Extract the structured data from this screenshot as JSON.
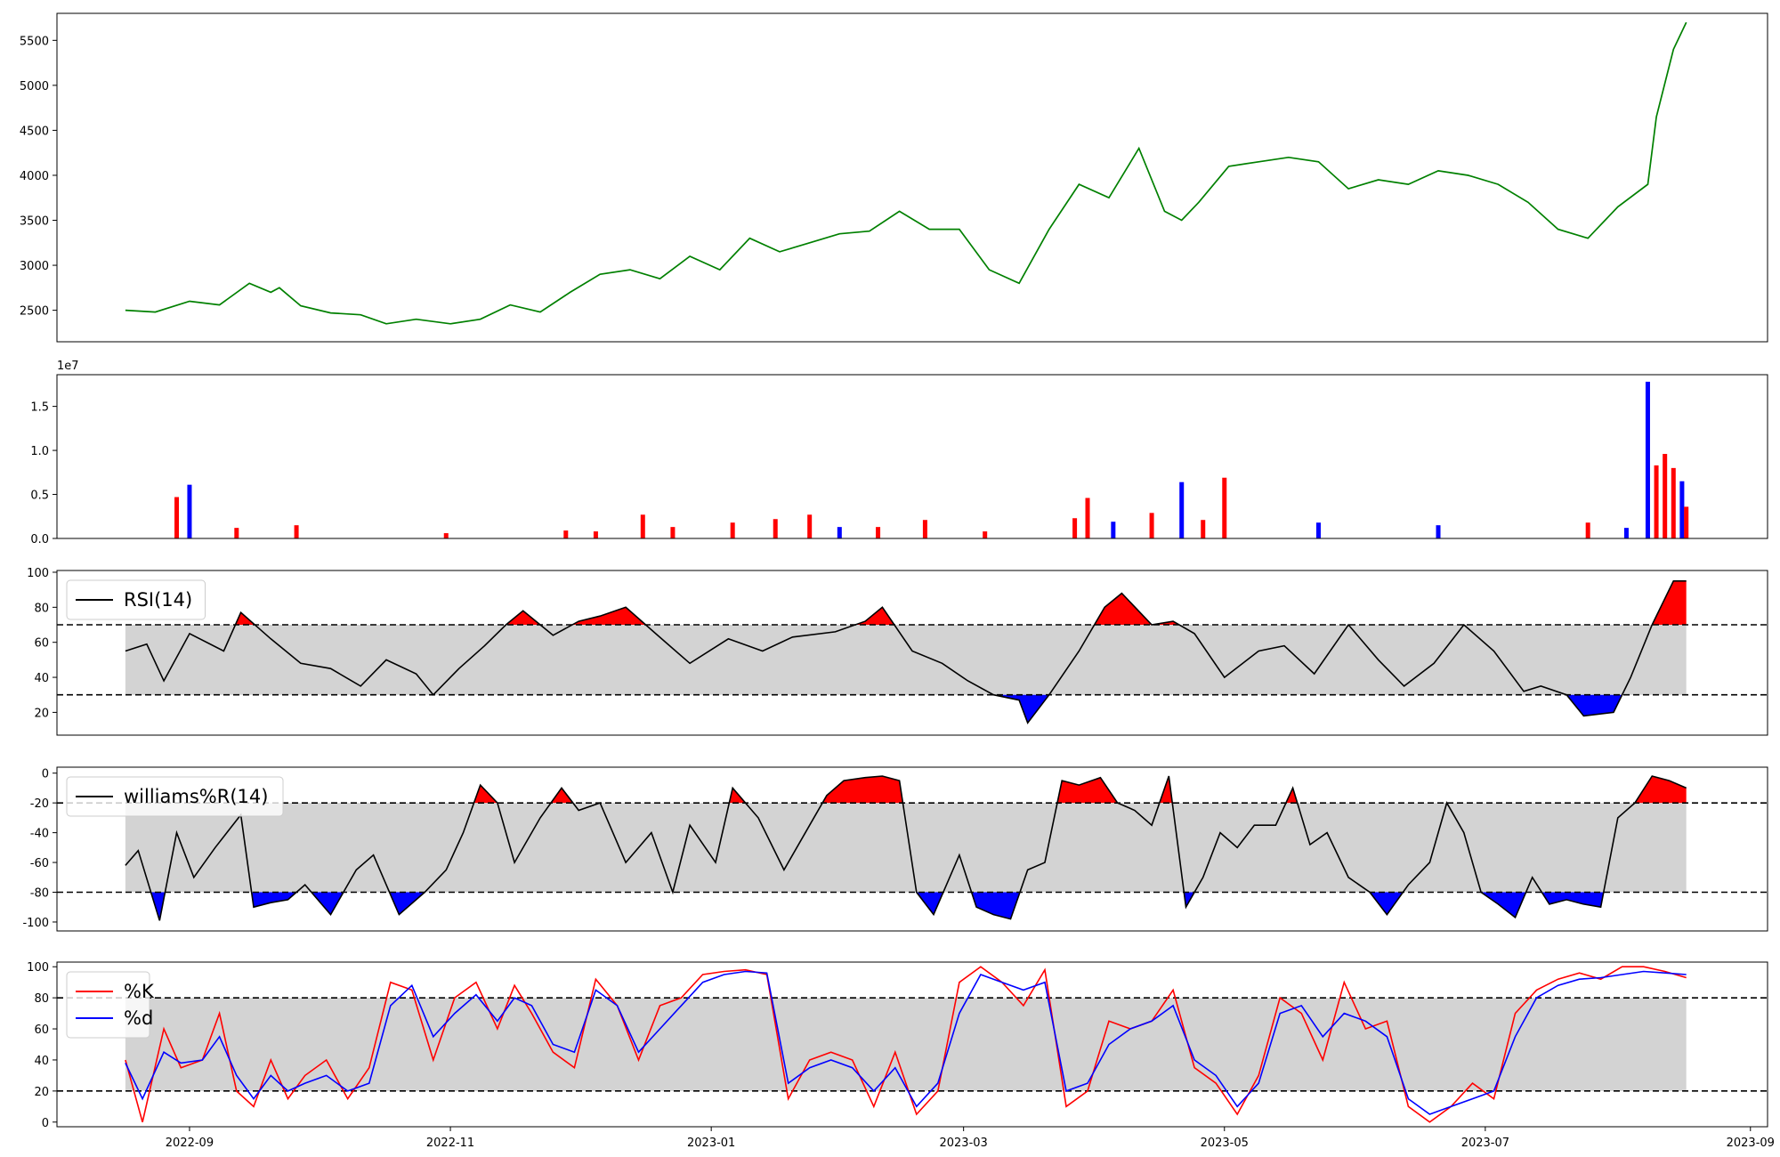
{
  "figure": {
    "background": "#ffffff",
    "fill_gray": "#d3d3d3",
    "pos_color": "#ff0000",
    "neg_color": "#0000ff",
    "price_color": "#008000",
    "line_color": "#000000"
  },
  "x_axis": {
    "date_start": "2022-08-17",
    "date_end": "2023-08-17",
    "tick_labels": [
      "2022-09",
      "2022-11",
      "2023-01",
      "2023-03",
      "2023-05",
      "2023-07",
      "2023-09"
    ]
  },
  "chart_data": [
    {
      "name": "price",
      "type": "line",
      "title": "",
      "xlabel": "",
      "ylabel": "",
      "ylim": [
        2150,
        5800
      ],
      "yticks": [
        2500,
        3000,
        3500,
        4000,
        4500,
        5000,
        5500
      ],
      "color": "#008000",
      "grid": false,
      "x": [
        "2022-08-17",
        "2022-08-24",
        "2022-09-01",
        "2022-09-08",
        "2022-09-15",
        "2022-09-20",
        "2022-09-22",
        "2022-09-27",
        "2022-10-04",
        "2022-10-11",
        "2022-10-17",
        "2022-10-24",
        "2022-11-01",
        "2022-11-08",
        "2022-11-15",
        "2022-11-22",
        "2022-11-29",
        "2022-12-06",
        "2022-12-13",
        "2022-12-20",
        "2022-12-27",
        "2023-01-03",
        "2023-01-10",
        "2023-01-17",
        "2023-01-24",
        "2023-01-31",
        "2023-02-07",
        "2023-02-14",
        "2023-02-21",
        "2023-02-28",
        "2023-03-07",
        "2023-03-14",
        "2023-03-21",
        "2023-03-28",
        "2023-04-04",
        "2023-04-11",
        "2023-04-17",
        "2023-04-21",
        "2023-04-25",
        "2023-05-02",
        "2023-05-09",
        "2023-05-16",
        "2023-05-23",
        "2023-05-30",
        "2023-06-06",
        "2023-06-13",
        "2023-06-20",
        "2023-06-27",
        "2023-07-04",
        "2023-07-11",
        "2023-07-18",
        "2023-07-25",
        "2023-08-01",
        "2023-08-08",
        "2023-08-10",
        "2023-08-14",
        "2023-08-17"
      ],
      "values": [
        2500,
        2480,
        2600,
        2560,
        2800,
        2700,
        2750,
        2550,
        2470,
        2450,
        2350,
        2400,
        2350,
        2400,
        2560,
        2480,
        2700,
        2900,
        2950,
        2850,
        3100,
        2950,
        3300,
        3150,
        3250,
        3350,
        3380,
        3600,
        3400,
        3400,
        2950,
        2800,
        3400,
        3900,
        3750,
        4300,
        3600,
        3500,
        3700,
        4100,
        4150,
        4200,
        4150,
        3850,
        3950,
        3900,
        4050,
        4000,
        3900,
        3700,
        3400,
        3300,
        3650,
        3900,
        4650,
        5400,
        5700
      ]
    },
    {
      "name": "volume",
      "type": "bar",
      "title": "",
      "ylim": [
        0,
        18600000
      ],
      "yticks": [
        0,
        5000000,
        10000000,
        15000000
      ],
      "ytick_labels": [
        "0.0",
        "0.5",
        "1.0",
        "1.5"
      ],
      "offset_label": "1e7",
      "colors": {
        "up": "#ff0000",
        "down": "#0000ff"
      },
      "x": [
        "2022-08-29",
        "2022-09-01",
        "2022-09-12",
        "2022-09-26",
        "2022-10-31",
        "2022-11-28",
        "2022-12-05",
        "2022-12-16",
        "2022-12-23",
        "2023-01-06",
        "2023-01-16",
        "2023-01-24",
        "2023-01-31",
        "2023-02-09",
        "2023-02-20",
        "2023-03-06",
        "2023-03-27",
        "2023-03-30",
        "2023-04-05",
        "2023-04-14",
        "2023-04-21",
        "2023-04-26",
        "2023-05-01",
        "2023-05-23",
        "2023-06-20",
        "2023-07-25",
        "2023-08-03",
        "2023-08-08",
        "2023-08-10",
        "2023-08-12",
        "2023-08-14",
        "2023-08-16",
        "2023-08-17"
      ],
      "values": [
        4700000,
        6100000,
        1200000,
        1500000,
        600000,
        900000,
        800000,
        2700000,
        1300000,
        1800000,
        2200000,
        2700000,
        1300000,
        1300000,
        2100000,
        800000,
        2300000,
        4600000,
        1900000,
        2900000,
        6400000,
        2100000,
        6900000,
        1800000,
        1500000,
        1800000,
        1200000,
        17800000,
        8300000,
        9600000,
        8000000,
        6500000,
        3600000
      ],
      "directions": [
        "up",
        "down",
        "up",
        "up",
        "up",
        "up",
        "up",
        "up",
        "up",
        "up",
        "up",
        "up",
        "down",
        "up",
        "up",
        "up",
        "up",
        "up",
        "down",
        "up",
        "down",
        "up",
        "up",
        "down",
        "down",
        "up",
        "down",
        "down",
        "up",
        "up",
        "up",
        "down",
        "up"
      ]
    },
    {
      "name": "rsi",
      "type": "line",
      "title": "",
      "legend": "RSI(14)",
      "legend_position": "upper-left",
      "ylim": [
        7,
        101
      ],
      "yticks": [
        20,
        40,
        60,
        80,
        100
      ],
      "thresholds": [
        30,
        70
      ],
      "x": [
        "2022-08-17",
        "2022-08-22",
        "2022-08-26",
        "2022-09-01",
        "2022-09-09",
        "2022-09-13",
        "2022-09-20",
        "2022-09-27",
        "2022-10-04",
        "2022-10-11",
        "2022-10-17",
        "2022-10-24",
        "2022-10-28",
        "2022-11-03",
        "2022-11-09",
        "2022-11-14",
        "2022-11-18",
        "2022-11-25",
        "2022-12-01",
        "2022-12-06",
        "2022-12-12",
        "2022-12-19",
        "2022-12-27",
        "2023-01-05",
        "2023-01-13",
        "2023-01-20",
        "2023-01-30",
        "2023-02-06",
        "2023-02-10",
        "2023-02-17",
        "2023-02-24",
        "2023-03-02",
        "2023-03-08",
        "2023-03-14",
        "2023-03-16",
        "2023-03-21",
        "2023-03-28",
        "2023-04-03",
        "2023-04-07",
        "2023-04-14",
        "2023-04-19",
        "2023-04-24",
        "2023-05-01",
        "2023-05-09",
        "2023-05-15",
        "2023-05-22",
        "2023-05-30",
        "2023-06-06",
        "2023-06-12",
        "2023-06-19",
        "2023-06-26",
        "2023-07-03",
        "2023-07-10",
        "2023-07-14",
        "2023-07-20",
        "2023-07-24",
        "2023-07-31",
        "2023-08-04",
        "2023-08-09",
        "2023-08-14",
        "2023-08-17"
      ],
      "values": [
        55,
        59,
        38,
        65,
        55,
        77,
        62,
        48,
        45,
        35,
        50,
        42,
        30,
        45,
        58,
        70,
        78,
        64,
        72,
        75,
        80,
        65,
        48,
        62,
        55,
        63,
        66,
        72,
        80,
        55,
        48,
        38,
        30,
        27,
        14,
        30,
        55,
        80,
        88,
        70,
        72,
        65,
        40,
        55,
        58,
        42,
        70,
        50,
        35,
        48,
        70,
        55,
        32,
        35,
        30,
        18,
        20,
        40,
        70,
        95,
        95
      ]
    },
    {
      "name": "williams_r",
      "type": "line",
      "title": "",
      "legend": "williams%R(14)",
      "legend_position": "upper-left",
      "ylim": [
        -106,
        4
      ],
      "yticks": [
        -100,
        -80,
        -60,
        -40,
        -20,
        0
      ],
      "thresholds": [
        -80,
        -20
      ],
      "x": [
        "2022-08-17",
        "2022-08-20",
        "2022-08-25",
        "2022-08-29",
        "2022-09-02",
        "2022-09-07",
        "2022-09-13",
        "2022-09-16",
        "2022-09-20",
        "2022-09-24",
        "2022-09-28",
        "2022-10-04",
        "2022-10-10",
        "2022-10-14",
        "2022-10-20",
        "2022-10-26",
        "2022-10-31",
        "2022-11-04",
        "2022-11-08",
        "2022-11-12",
        "2022-11-16",
        "2022-11-22",
        "2022-11-27",
        "2022-12-01",
        "2022-12-06",
        "2022-12-12",
        "2022-12-18",
        "2022-12-23",
        "2022-12-27",
        "2023-01-02",
        "2023-01-06",
        "2023-01-12",
        "2023-01-18",
        "2023-01-24",
        "2023-01-28",
        "2023-02-01",
        "2023-02-06",
        "2023-02-10",
        "2023-02-14",
        "2023-02-18",
        "2023-02-22",
        "2023-02-28",
        "2023-03-04",
        "2023-03-08",
        "2023-03-12",
        "2023-03-16",
        "2023-03-20",
        "2023-03-24",
        "2023-03-28",
        "2023-04-02",
        "2023-04-06",
        "2023-04-10",
        "2023-04-14",
        "2023-04-18",
        "2023-04-22",
        "2023-04-26",
        "2023-04-30",
        "2023-05-04",
        "2023-05-08",
        "2023-05-13",
        "2023-05-17",
        "2023-05-21",
        "2023-05-25",
        "2023-05-30",
        "2023-06-04",
        "2023-06-08",
        "2023-06-13",
        "2023-06-18",
        "2023-06-22",
        "2023-06-26",
        "2023-06-30",
        "2023-07-04",
        "2023-07-08",
        "2023-07-12",
        "2023-07-16",
        "2023-07-20",
        "2023-07-24",
        "2023-07-28",
        "2023-08-01",
        "2023-08-05",
        "2023-08-09",
        "2023-08-13",
        "2023-08-17"
      ],
      "values": [
        -62,
        -52,
        -99,
        -40,
        -70,
        -50,
        -28,
        -90,
        -87,
        -85,
        -75,
        -95,
        -65,
        -55,
        -95,
        -80,
        -65,
        -40,
        -8,
        -20,
        -60,
        -30,
        -10,
        -25,
        -20,
        -60,
        -40,
        -80,
        -35,
        -60,
        -10,
        -30,
        -65,
        -35,
        -15,
        -5,
        -3,
        -2,
        -5,
        -80,
        -95,
        -55,
        -90,
        -95,
        -98,
        -65,
        -60,
        -5,
        -8,
        -3,
        -20,
        -25,
        -35,
        -2,
        -90,
        -70,
        -40,
        -50,
        -35,
        -35,
        -10,
        -48,
        -40,
        -70,
        -80,
        -95,
        -75,
        -60,
        -20,
        -40,
        -80,
        -88,
        -97,
        -70,
        -88,
        -85,
        -88,
        -90,
        -30,
        -20,
        -2,
        -5,
        -10
      ],
      "fill_colors": {
        "above": "#ff0000",
        "below": "#0000ff",
        "middle": "#d3d3d3"
      }
    },
    {
      "name": "stochastic",
      "type": "line",
      "title": "",
      "legend_position": "upper-left",
      "ylim": [
        -3,
        103
      ],
      "yticks": [
        0,
        20,
        40,
        60,
        80,
        100
      ],
      "thresholds": [
        20,
        80
      ],
      "x": [
        "2022-08-17",
        "2022-08-21",
        "2022-08-26",
        "2022-08-30",
        "2022-09-04",
        "2022-09-08",
        "2022-09-12",
        "2022-09-16",
        "2022-09-20",
        "2022-09-24",
        "2022-09-28",
        "2022-10-03",
        "2022-10-08",
        "2022-10-13",
        "2022-10-18",
        "2022-10-23",
        "2022-10-28",
        "2022-11-02",
        "2022-11-07",
        "2022-11-12",
        "2022-11-16",
        "2022-11-20",
        "2022-11-25",
        "2022-11-30",
        "2022-12-05",
        "2022-12-10",
        "2022-12-15",
        "2022-12-20",
        "2022-12-25",
        "2022-12-30",
        "2023-01-04",
        "2023-01-09",
        "2023-01-14",
        "2023-01-19",
        "2023-01-24",
        "2023-01-29",
        "2023-02-03",
        "2023-02-08",
        "2023-02-13",
        "2023-02-18",
        "2023-02-23",
        "2023-02-28",
        "2023-03-05",
        "2023-03-10",
        "2023-03-15",
        "2023-03-20",
        "2023-03-25",
        "2023-03-30",
        "2023-04-04",
        "2023-04-09",
        "2023-04-14",
        "2023-04-19",
        "2023-04-24",
        "2023-04-29",
        "2023-05-04",
        "2023-05-09",
        "2023-05-14",
        "2023-05-19",
        "2023-05-24",
        "2023-05-29",
        "2023-06-03",
        "2023-06-08",
        "2023-06-13",
        "2023-06-18",
        "2023-06-23",
        "2023-06-28",
        "2023-07-03",
        "2023-07-08",
        "2023-07-13",
        "2023-07-18",
        "2023-07-23",
        "2023-07-28",
        "2023-08-02",
        "2023-08-07",
        "2023-08-12",
        "2023-08-17"
      ],
      "series": [
        {
          "name": "%K",
          "color": "#ff0000",
          "values": [
            40,
            0,
            60,
            35,
            40,
            70,
            20,
            10,
            40,
            15,
            30,
            40,
            15,
            35,
            90,
            85,
            40,
            80,
            90,
            60,
            88,
            70,
            45,
            35,
            92,
            75,
            40,
            75,
            80,
            95,
            97,
            98,
            95,
            15,
            40,
            45,
            40,
            10,
            45,
            5,
            20,
            90,
            100,
            90,
            75,
            98,
            10,
            20,
            65,
            60,
            65,
            85,
            35,
            25,
            5,
            30,
            80,
            70,
            40,
            90,
            60,
            65,
            10,
            0,
            10,
            25,
            15,
            70,
            85,
            92,
            96,
            92,
            100,
            100,
            97,
            93
          ]
        },
        {
          "name": "%d",
          "color": "#0000ff",
          "values": [
            38,
            15,
            45,
            38,
            40,
            55,
            30,
            15,
            30,
            20,
            25,
            30,
            20,
            25,
            75,
            88,
            55,
            70,
            82,
            65,
            80,
            75,
            50,
            45,
            85,
            75,
            45,
            60,
            75,
            90,
            95,
            97,
            96,
            25,
            35,
            40,
            35,
            20,
            35,
            10,
            25,
            70,
            95,
            90,
            85,
            90,
            20,
            25,
            50,
            60,
            65,
            75,
            40,
            30,
            10,
            25,
            70,
            75,
            55,
            70,
            65,
            55,
            15,
            5,
            10,
            15,
            20,
            55,
            80,
            88,
            92,
            93,
            95,
            97,
            96,
            95
          ]
        }
      ]
    }
  ]
}
